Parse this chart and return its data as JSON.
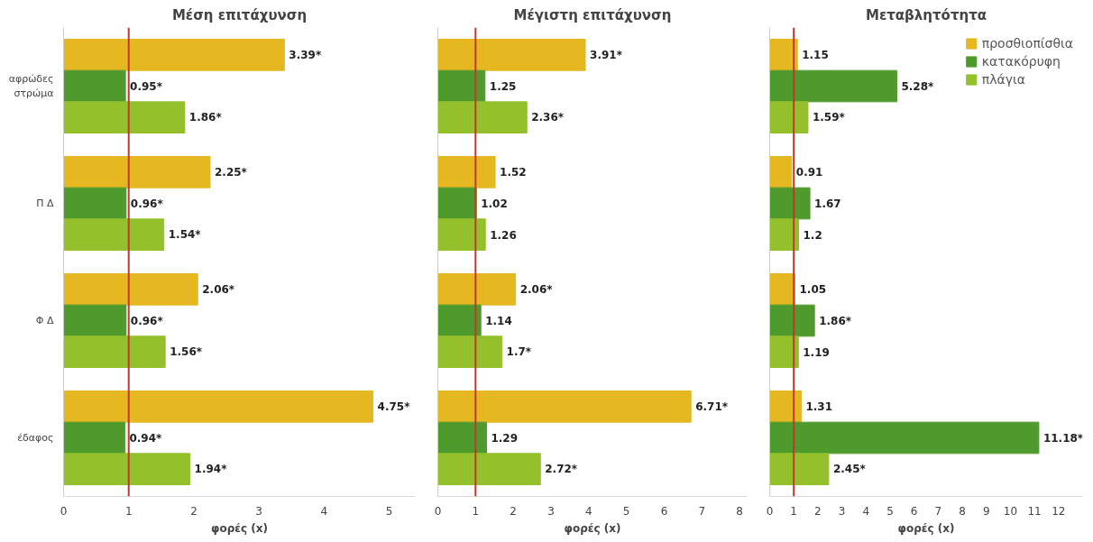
{
  "chart_data": [
    {
      "type": "bar",
      "orientation": "horizontal",
      "title": "Μέση επιτάχυνση",
      "xlabel": "φορές (x)",
      "categories": [
        "αφρώδες στρώμα",
        "Π Δ",
        "Φ Δ",
        "έδαφος"
      ],
      "xlim": [
        0,
        5.4
      ],
      "xticks": [
        0,
        1,
        2,
        3,
        4,
        5
      ],
      "grid": false,
      "legend": false,
      "ref_lines": [
        {
          "axis": "x",
          "value": 1,
          "color": "#c0392b"
        }
      ],
      "series": [
        {
          "color": "#e5b822",
          "values": [
            3.39,
            2.25,
            2.06,
            4.75
          ],
          "value_labels": [
            "3.39*",
            "2.25*",
            "2.06*",
            "4.75*"
          ]
        },
        {
          "color": "#4f9a2c",
          "values": [
            0.95,
            0.96,
            0.96,
            0.94
          ],
          "value_labels": [
            "0.95*",
            "0.96*",
            "0.96*",
            "0.94*"
          ]
        },
        {
          "color": "#93c02b",
          "values": [
            1.86,
            1.54,
            1.56,
            1.94
          ],
          "value_labels": [
            "1.86*",
            "1.54*",
            "1.56*",
            "1.94*"
          ]
        }
      ]
    },
    {
      "type": "bar",
      "orientation": "horizontal",
      "title": "Μέγιστη επιτάχυνση",
      "xlabel": "φορές (x)",
      "categories": [
        null,
        null,
        null,
        null
      ],
      "xlim": [
        0,
        8.2
      ],
      "xticks": [
        0,
        1,
        2,
        3,
        4,
        5,
        6,
        7,
        8
      ],
      "grid": false,
      "legend": false,
      "ref_lines": [
        {
          "axis": "x",
          "value": 1,
          "color": "#c0392b"
        }
      ],
      "series": [
        {
          "color": "#e5b822",
          "values": [
            3.91,
            1.52,
            2.06,
            6.71
          ],
          "value_labels": [
            "3.91*",
            "1.52",
            "2.06*",
            "6.71*"
          ]
        },
        {
          "color": "#4f9a2c",
          "values": [
            1.25,
            1.02,
            1.14,
            1.29
          ],
          "value_labels": [
            "1.25",
            "1.02",
            "1.14",
            "1.29"
          ]
        },
        {
          "color": "#93c02b",
          "values": [
            2.36,
            1.26,
            1.7,
            2.72
          ],
          "value_labels": [
            "2.36*",
            "1.26",
            "1.7*",
            "2.72*"
          ]
        }
      ]
    },
    {
      "type": "bar",
      "orientation": "horizontal",
      "title": "Μεταβλητότητα",
      "xlabel": "φορές (x)",
      "categories": [
        null,
        null,
        null,
        null
      ],
      "xlim": [
        0,
        13
      ],
      "xticks": [
        0,
        1,
        2,
        3,
        4,
        5,
        6,
        7,
        8,
        9,
        10,
        11,
        12
      ],
      "grid": false,
      "legend": "top right",
      "ref_lines": [
        {
          "axis": "x",
          "value": 1,
          "color": "#c0392b"
        }
      ],
      "series": [
        {
          "name": "προσθιοπίσθια",
          "color": "#e5b822",
          "values": [
            1.15,
            0.91,
            1.05,
            1.31
          ],
          "value_labels": [
            "1.15",
            "0.91",
            "1.05",
            "1.31"
          ]
        },
        {
          "name": "κατακόρυφη",
          "color": "#4f9a2c",
          "values": [
            5.28,
            1.67,
            1.86,
            11.18
          ],
          "value_labels": [
            "5.28*",
            "1.67",
            "1.86*",
            "11.18*"
          ]
        },
        {
          "name": "πλάγια",
          "color": "#93c02b",
          "values": [
            1.59,
            1.2,
            1.19,
            2.45
          ],
          "value_labels": [
            "1.59*",
            "1.2",
            "1.19",
            "2.45*"
          ]
        }
      ]
    }
  ]
}
